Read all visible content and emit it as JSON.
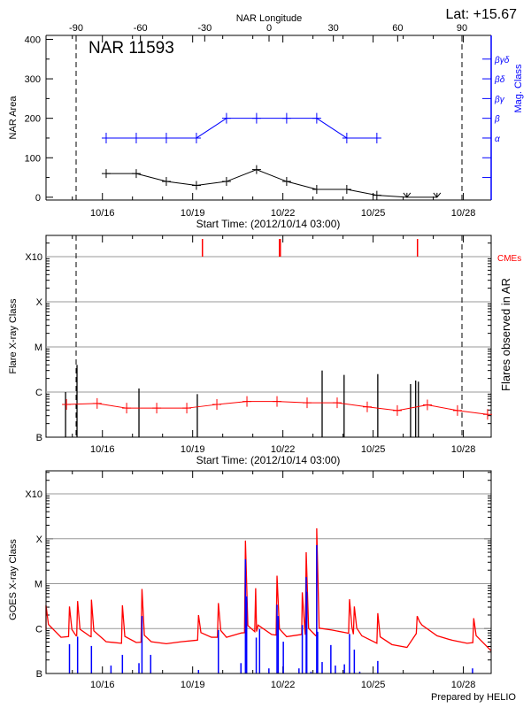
{
  "header": {
    "lat_label": "Lat: +15.67",
    "top_axis_label": "NAR Longitude"
  },
  "colors": {
    "area": "#000000",
    "mag_class": "#0000ff",
    "flare_trend": "#ff0000",
    "cme": "#ff0000",
    "goes_long": "#ff0000",
    "goes_short": "#0000ff",
    "gridline": "#999999"
  },
  "footer": {
    "credit": "Prepared by HELIO"
  },
  "chart_data": [
    {
      "type": "line",
      "title": "NAR 11593",
      "xlabel": "Start Time: (2012/10/14 03:00)",
      "ylabel": "NAR Area",
      "y2label": "Mag. Class",
      "x2label": "NAR Longitude",
      "ylim": [
        -7,
        410
      ],
      "xlim_days": [
        0,
        14.8
      ],
      "xticks": [
        "10/16",
        "10/19",
        "10/22",
        "10/25",
        "10/28"
      ],
      "x2ticks": [
        "-90",
        "-60",
        "-30",
        "0",
        "30",
        "60",
        "90"
      ],
      "yticks": [
        "0",
        "100",
        "200",
        "300",
        "400"
      ],
      "y2ticks": [
        "",
        "",
        "α",
        "β",
        "βγ",
        "βδ",
        "βγδ"
      ],
      "limb_markers_longitude": [
        -90,
        90
      ],
      "series": [
        {
          "key": "area",
          "dates": [
            "10/16",
            "10/17",
            "10/18",
            "10/19",
            "10/20",
            "10/21",
            "10/22",
            "10/23",
            "10/24",
            "10/25",
            "10/26",
            "10/27"
          ],
          "values": [
            60,
            60,
            40,
            30,
            40,
            70,
            40,
            20,
            20,
            5,
            0,
            0
          ]
        },
        {
          "key": "mag_class",
          "dates": [
            "10/16",
            "10/17",
            "10/18",
            "10/19",
            "10/20",
            "10/21",
            "10/22",
            "10/23",
            "10/24",
            "10/25"
          ],
          "values": [
            "α",
            "α",
            "α",
            "α",
            "β",
            "β",
            "β",
            "β",
            "α",
            "α"
          ]
        }
      ]
    },
    {
      "type": "bar",
      "xlabel": "Start Time: (2012/10/14 03:00)",
      "ylabel": "Flare X-ray Class",
      "y2label": "Flares observed in AR",
      "cme_label": "CMEs",
      "yticks": [
        "B",
        "C",
        "M",
        "X",
        "X10"
      ],
      "xticks": [
        "10/16",
        "10/19",
        "10/22",
        "10/25",
        "10/28"
      ],
      "flares": {
        "days": [
          0.65,
          1.03,
          3.09,
          5.03,
          9.18,
          9.91,
          11.03,
          12.12,
          12.29,
          12.38
        ],
        "classes": [
          "C1.0",
          "C4.0",
          "C1.2",
          "B9.0",
          "C3.0",
          "C2.4",
          "C2.5",
          "C1.5",
          "C1.8",
          "C1.7"
        ]
      },
      "trend": {
        "days": [
          0.68,
          1.7,
          2.68,
          3.68,
          4.68,
          5.68,
          6.68,
          7.68,
          8.68,
          9.68,
          10.68,
          11.68,
          12.68,
          13.68,
          14.68
        ],
        "classes": [
          "B5.3",
          "B5.6",
          "B4.4",
          "B4.4",
          "B4.4",
          "B5.3",
          "B6.2",
          "B6.2",
          "B5.8",
          "B5.8",
          "B4.7",
          "B3.9",
          "B5.2",
          "B3.9",
          "B3.2"
        ]
      },
      "cmes_days": [
        5.2,
        7.76,
        7.79,
        12.35
      ]
    },
    {
      "type": "line",
      "ylabel": "GOES X-ray Class",
      "yticks": [
        "B",
        "C",
        "M",
        "X",
        "X10"
      ],
      "xticks": [
        "10/16",
        "10/19",
        "10/22",
        "10/25",
        "10/28"
      ],
      "long_channel": {
        "baseline_days": [
          0,
          0.5,
          1,
          1.5,
          2,
          2.5,
          3,
          3.5,
          4,
          4.5,
          5,
          5.5,
          6,
          6.5,
          7,
          7.5,
          8,
          8.5,
          9,
          9.5,
          10,
          10.5,
          11,
          11.5,
          12,
          12.5,
          13,
          13.5,
          14,
          14.5,
          14.8
        ],
        "baseline_classes": [
          "B9.3",
          "B6.4",
          "B6.9",
          "B6.6",
          "B5.1",
          "B4.7",
          "B4.9",
          "B5.1",
          "B4.6",
          "B5.1",
          "B5.5",
          "B6.4",
          "B6.4",
          "B8.0",
          "B8.6",
          "B7.4",
          "B6.6",
          "B7.4",
          "B6.9",
          "B9.3",
          "B8.0",
          "B6.9",
          "B4.7",
          "B4.4",
          "B3.8",
          "C1.2",
          "B6.9",
          "B5.5",
          "B4.7",
          "B5.1",
          "B3.2"
        ],
        "peak_days": [
          0,
          0.78,
          1.05,
          1.51,
          2.54,
          3.19,
          5.07,
          5.73,
          6.63,
          6.97,
          7.68,
          8.52,
          8.65,
          9.0,
          10.09,
          10.25,
          11.03,
          12.34,
          14.22
        ],
        "peak_classes": [
          "C3.3",
          "C3.1",
          "C4.1",
          "C4.4",
          "C3.3",
          "C7.6",
          "C2.0",
          "C3.7",
          "M9.1",
          "C7.9",
          "M1.5",
          "C6.4",
          "M5.0",
          "X1.7",
          "C4.5",
          "C3.1",
          "C2.2",
          "C1.9",
          "C1.7"
        ]
      },
      "short_channel": {
        "peak_days": [
          0.78,
          1.05,
          1.51,
          2.16,
          2.54,
          3.09,
          3.19,
          3.48,
          5.07,
          5.73,
          6.48,
          6.63,
          6.67,
          6.99,
          7.1,
          7.41,
          7.68,
          7.72,
          7.89,
          8.41,
          8.52,
          8.65,
          8.67,
          8.81,
          9.0,
          9.03,
          9.18,
          9.47,
          9.62,
          9.92,
          10.09,
          10.25,
          10.43,
          11.03,
          14.18
        ],
        "peak_classes": [
          "B4.5",
          "B6.6",
          "B4.1",
          "B1.5",
          "B2.6",
          "B1.7",
          "C1.9",
          "B2.6",
          "B1.2",
          "B9.3",
          "B1.7",
          "M3.5",
          "C5.2",
          "B6.3",
          "B9.7",
          "B1.3",
          "C3.4",
          "C1.9",
          "B5.1",
          "B1.3",
          "C1.2",
          "M1.4",
          "C6.6",
          "B1.1",
          "M7.2",
          "B8.5",
          "B1.8",
          "B4.3",
          "B1.5",
          "B1.6",
          "B7.6",
          "B3.4",
          "B1.1",
          "B1.9",
          "B1.3"
        ]
      }
    }
  ]
}
